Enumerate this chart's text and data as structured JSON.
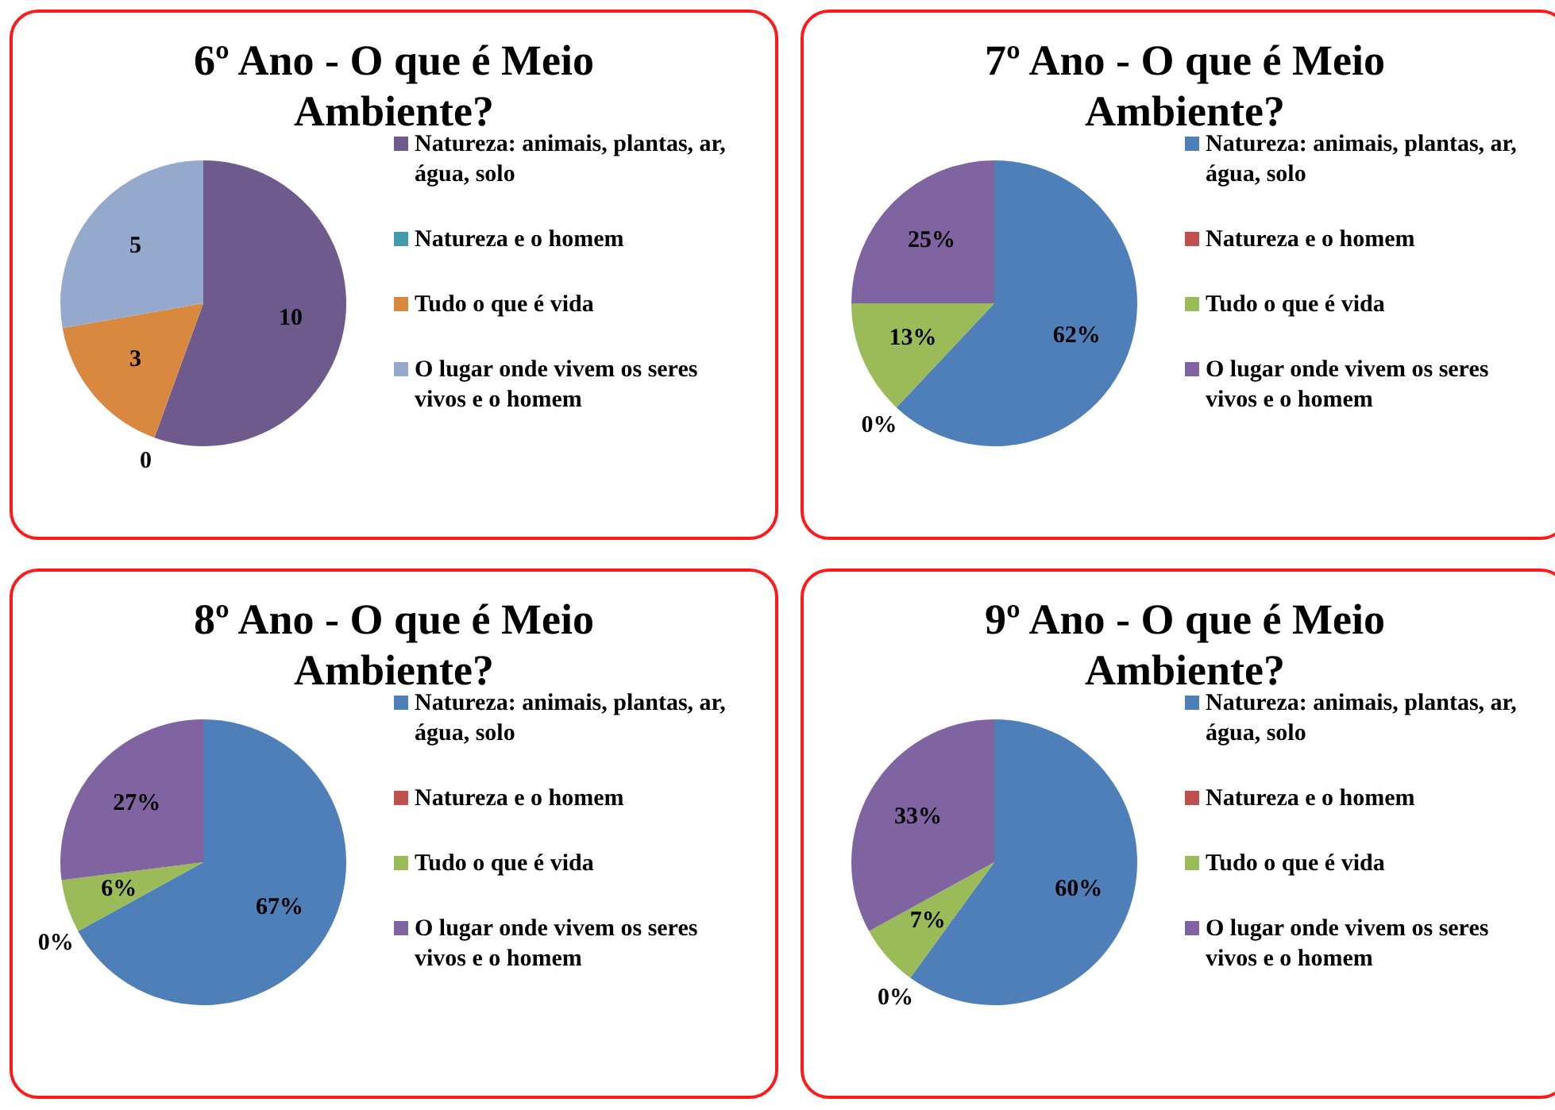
{
  "chart_data": [
    {
      "type": "pie",
      "title": "6º Ano - O que é Meio Ambiente?",
      "categories": [
        "Natureza: animais, plantas, ar, água, solo",
        "Natureza e o homem",
        "Tudo o que é vida",
        "O lugar onde vivem os seres vivos e o homem"
      ],
      "values": [
        10,
        0,
        3,
        5
      ],
      "colors": [
        "#6f5a8e",
        "#4499aa",
        "#d9883f",
        "#94a9cc"
      ],
      "value_labels": [
        "10",
        "0",
        "3",
        "5"
      ],
      "legend": "right"
    },
    {
      "type": "pie",
      "title": "7º Ano - O que é Meio Ambiente?",
      "categories": [
        "Natureza: animais, plantas, ar, água, solo",
        "Natureza e o homem",
        "Tudo o que é vida",
        "O lugar onde vivem os seres vivos e o homem"
      ],
      "values": [
        62,
        0,
        13,
        25
      ],
      "colors": [
        "#4f7fb8",
        "#c0504d",
        "#9bbb59",
        "#8064a2"
      ],
      "value_labels": [
        "62%",
        "0%",
        "13%",
        "25%"
      ],
      "legend": "right"
    },
    {
      "type": "pie",
      "title": "8º Ano - O que é Meio Ambiente?",
      "categories": [
        "Natureza: animais, plantas, ar, água, solo",
        "Natureza e o homem",
        "Tudo o que é vida",
        "O lugar onde vivem os seres vivos e o homem"
      ],
      "values": [
        67,
        0,
        6,
        27
      ],
      "colors": [
        "#4f7fb8",
        "#c0504d",
        "#9bbb59",
        "#8064a2"
      ],
      "value_labels": [
        "67%",
        "0%",
        "6%",
        "27%"
      ],
      "legend": "right"
    },
    {
      "type": "pie",
      "title": "9º Ano - O que é Meio Ambiente?",
      "categories": [
        "Natureza: animais, plantas, ar, água, solo",
        "Natureza e o homem",
        "Tudo o que é vida",
        "O lugar onde vivem os seres vivos e o homem"
      ],
      "values": [
        60,
        0,
        7,
        33
      ],
      "colors": [
        "#4f7fb8",
        "#c0504d",
        "#9bbb59",
        "#8064a2"
      ],
      "value_labels": [
        "60%",
        "0%",
        "7%",
        "33%"
      ],
      "legend": "right"
    }
  ]
}
